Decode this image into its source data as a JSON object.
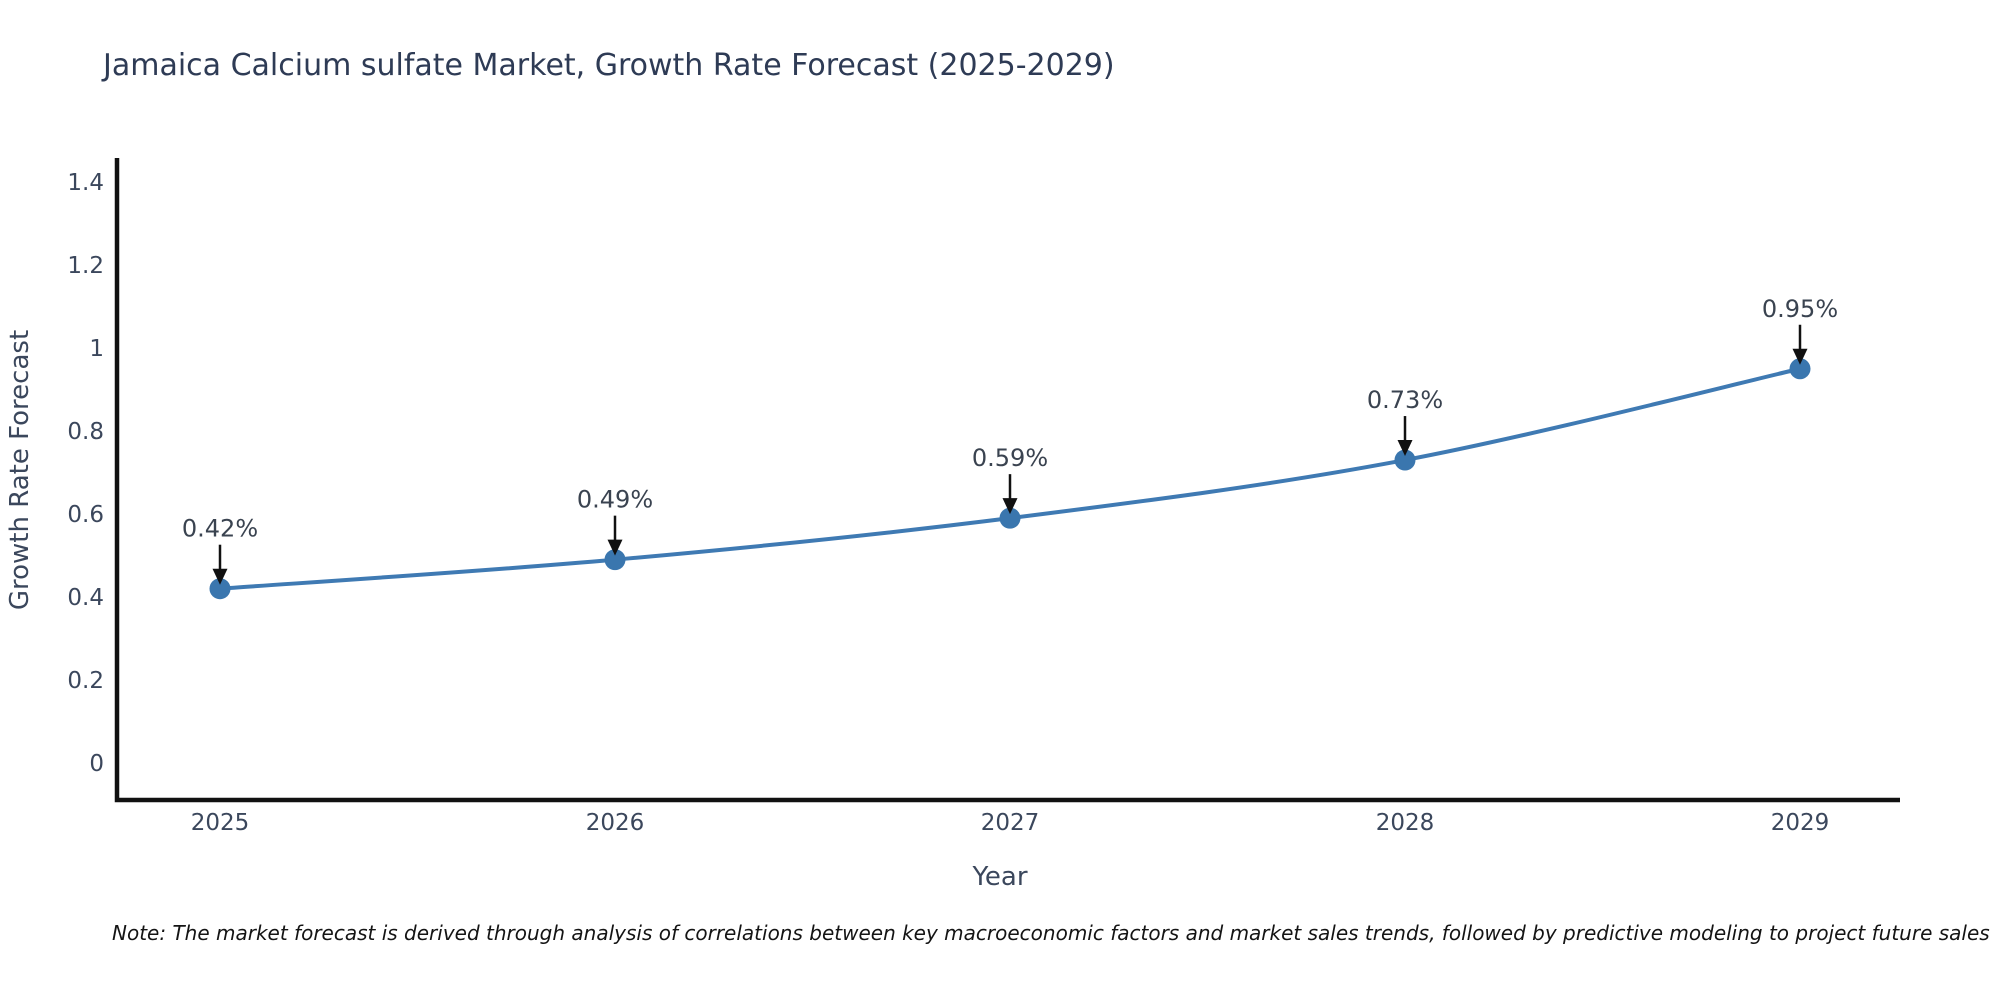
{
  "page": {
    "title": "Jamaica Calcium sulfate Market, Growth Rate Forecast (2025-2029)",
    "note": "Note: The market forecast is derived through analysis of correlations between key macroeconomic factors and market sales trends, followed by predictive modeling to project future sales"
  },
  "chart_data": {
    "type": "line",
    "title": "Jamaica Calcium sulfate Market, Growth Rate Forecast (2025-2029)",
    "categories": [
      "2025",
      "2026",
      "2027",
      "2028",
      "2029"
    ],
    "series": [
      {
        "name": "Growth Rate Forecast",
        "values": [
          0.42,
          0.49,
          0.59,
          0.73,
          0.95
        ],
        "point_labels": [
          "0.42%",
          "0.49%",
          "0.59%",
          "0.73%",
          "0.95%"
        ]
      }
    ],
    "xlabel": "Year",
    "ylabel": "Growth Rate Forecast",
    "ylim": [
      0,
      1.4
    ],
    "yticks": [
      "0",
      "0.2",
      "0.4",
      "0.6",
      "0.8",
      "1",
      "1.2",
      "1.4"
    ],
    "grid": false,
    "legend_position": "none",
    "annotation_style": "down-arrow-to-point",
    "colors": {
      "line": "#3f7ab3",
      "marker": "#3a76ae",
      "arrow": "#111111",
      "spine": "#111111",
      "title_text": "#2e3b55",
      "axis_text": "#3b475c",
      "annotation_text": "#3a4350"
    },
    "note": "Note: The market forecast is derived through analysis of correlations between key macroeconomic factors and market sales trends, followed by predictive modeling to project future sales"
  }
}
